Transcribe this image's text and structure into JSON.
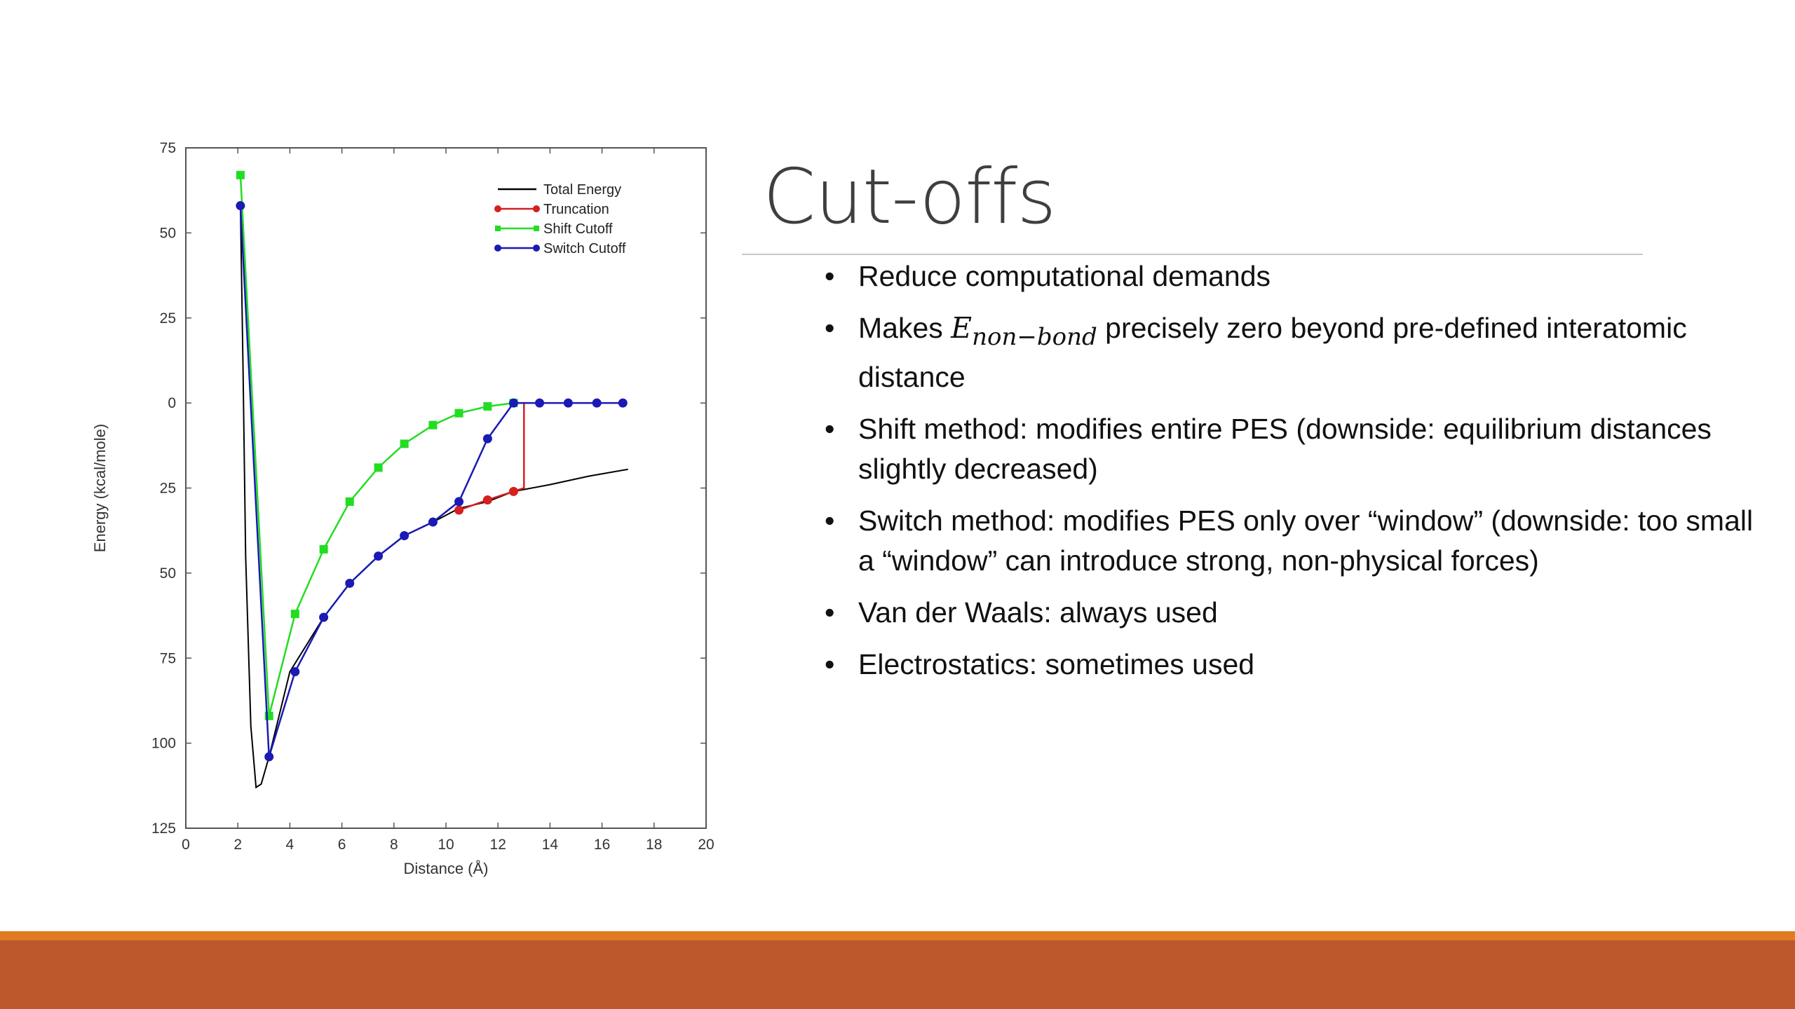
{
  "slide": {
    "title": "Cut-offs",
    "bullets": [
      {
        "text": "Reduce computational demands"
      },
      {
        "pre": "Makes ",
        "math_main": "E",
        "math_sub": "non−bond",
        "post": " precisely zero beyond pre-defined interatomic distance"
      },
      {
        "text": "Shift method: modifies entire PES (downside: equilibrium distances slightly decreased)"
      },
      {
        "text": "Switch method: modifies PES only over “window” (downside: too small a “window” can introduce strong, non-physical forces)"
      },
      {
        "text": "Van der Waals: always used"
      },
      {
        "text": "Electrostatics: sometimes used"
      }
    ],
    "bullet_glyph": "•"
  },
  "theme": {
    "accent_thin": "#e07b22",
    "accent_bar": "#bc582c",
    "title_color": "#3f3f3f",
    "rule_color": "#c8c8c8"
  },
  "chart_data": {
    "type": "line",
    "xlabel": "Distance (Å)",
    "ylabel": "Energy (kcal/mole)",
    "xlim": [
      0,
      20
    ],
    "ylim": [
      -125,
      75
    ],
    "xticks": [
      0,
      2,
      4,
      6,
      8,
      10,
      12,
      14,
      16,
      18,
      20
    ],
    "yticks": [
      75,
      50,
      25,
      0,
      -25,
      -50,
      -75,
      -100,
      -125
    ],
    "ytick_labels": [
      "75",
      "50",
      "25",
      "0",
      "25",
      "50",
      "75",
      "100",
      "125"
    ],
    "legend_position": "top-right",
    "grid": false,
    "series": [
      {
        "name": "Total Energy",
        "color": "#000000",
        "marker": "none",
        "points": [
          [
            2.1,
            58
          ],
          [
            2.2,
            10
          ],
          [
            2.3,
            -45
          ],
          [
            2.5,
            -95
          ],
          [
            2.7,
            -113
          ],
          [
            2.9,
            -112
          ],
          [
            3.2,
            -104
          ],
          [
            4,
            -79
          ],
          [
            5.3,
            -63
          ],
          [
            6.3,
            -53
          ],
          [
            7.4,
            -45
          ],
          [
            8.4,
            -39
          ],
          [
            9.5,
            -35
          ],
          [
            10.5,
            -31
          ],
          [
            11.6,
            -29
          ],
          [
            12.6,
            -26
          ],
          [
            14,
            -24
          ],
          [
            15.5,
            -21.5
          ],
          [
            17,
            -19.5
          ]
        ]
      },
      {
        "name": "Truncation",
        "color": "#d42020",
        "marker": "circle",
        "points": [
          [
            10.5,
            -31.5
          ],
          [
            11.6,
            -28.5
          ],
          [
            12.6,
            -26
          ],
          [
            13,
            -25
          ],
          [
            13,
            0
          ]
        ]
      },
      {
        "name": "Shift Cutoff",
        "color": "#22dd22",
        "marker": "square",
        "points": [
          [
            2.1,
            67
          ],
          [
            3.2,
            -92
          ],
          [
            4.2,
            -62
          ],
          [
            5.3,
            -43
          ],
          [
            6.3,
            -29
          ],
          [
            7.4,
            -19
          ],
          [
            8.4,
            -12
          ],
          [
            9.5,
            -6.5
          ],
          [
            10.5,
            -3
          ],
          [
            11.6,
            -1
          ],
          [
            12.6,
            0
          ]
        ]
      },
      {
        "name": "Switch Cutoff",
        "color": "#1a1ab4",
        "marker": "circle",
        "points": [
          [
            2.1,
            58
          ],
          [
            3.2,
            -104
          ],
          [
            4.2,
            -79
          ],
          [
            5.3,
            -63
          ],
          [
            6.3,
            -53
          ],
          [
            7.4,
            -45
          ],
          [
            8.4,
            -39
          ],
          [
            9.5,
            -35
          ],
          [
            10.5,
            -29
          ],
          [
            11.6,
            -10.5
          ],
          [
            12.6,
            0
          ],
          [
            13.6,
            0
          ],
          [
            14.7,
            0
          ],
          [
            15.8,
            0
          ],
          [
            16.8,
            0
          ]
        ]
      }
    ]
  }
}
